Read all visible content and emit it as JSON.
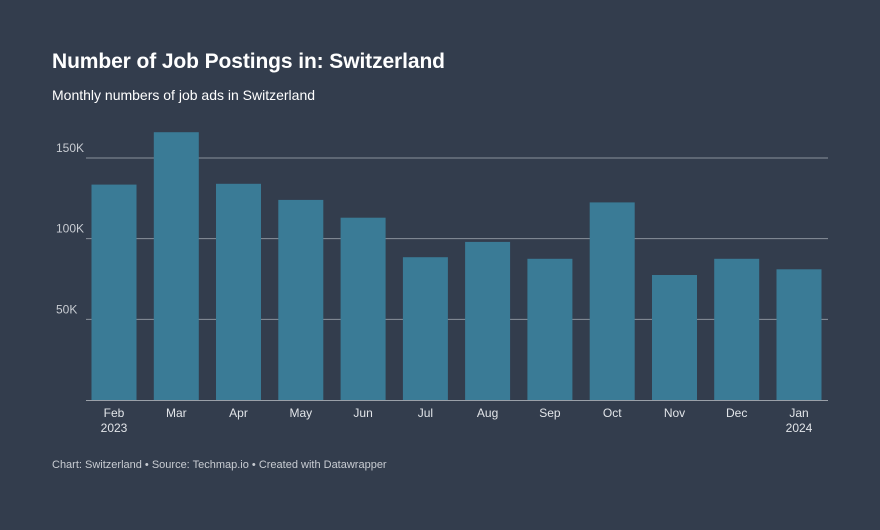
{
  "header": {
    "title": "Number of Job Postings in: Switzerland",
    "subtitle": "Monthly numbers of job ads in Switzerland"
  },
  "footer": {
    "text": "Chart: Switzerland • Source: Techmap.io • Created with Datawrapper"
  },
  "colors": {
    "background": "#333d4d",
    "bar": "#3a7b96",
    "grid": "#8a919b",
    "axis": "#9aa0a8"
  },
  "chart_data": {
    "type": "bar",
    "categories": [
      "Feb 2023",
      "Mar",
      "Apr",
      "May",
      "Jun",
      "Jul",
      "Aug",
      "Sep",
      "Oct",
      "Nov",
      "Dec",
      "Jan 2024"
    ],
    "category_lines": [
      [
        "Feb",
        "2023"
      ],
      [
        "Mar"
      ],
      [
        "Apr"
      ],
      [
        "May"
      ],
      [
        "Jun"
      ],
      [
        "Jul"
      ],
      [
        "Aug"
      ],
      [
        "Sep"
      ],
      [
        "Oct"
      ],
      [
        "Nov"
      ],
      [
        "Dec"
      ],
      [
        "Jan",
        "2024"
      ]
    ],
    "values": [
      133500,
      166000,
      134000,
      124000,
      113000,
      88500,
      98000,
      87500,
      122500,
      77500,
      87500,
      81000
    ],
    "ylim": [
      0,
      150000
    ],
    "yticks": [
      50000,
      100000,
      150000
    ],
    "ytick_labels": [
      "50K",
      "100K",
      "150K"
    ],
    "grid": true,
    "legend": "none"
  }
}
